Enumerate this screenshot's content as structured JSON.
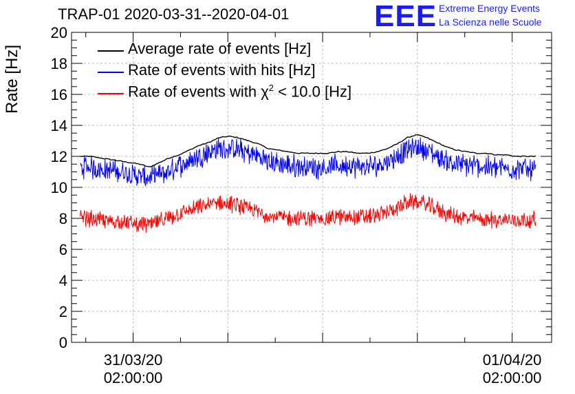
{
  "title": "TRAP-01 2020-03-31--2020-04-01",
  "logo": {
    "mark": "EEE",
    "line1": "Extreme Energy Events",
    "line2": "La Scienza nelle Scuole"
  },
  "legend": {
    "average": "Average rate of events [Hz]",
    "hits": "Rate of events with hits [Hz]",
    "chi2_prefix": "Rate of events with χ",
    "chi2_sup": "2",
    "chi2_suffix": " < 10.0 [Hz]"
  },
  "chart_data": {
    "type": "line",
    "title": "TRAP-01 2020-03-31--2020-04-01",
    "ylabel": "Rate [Hz]",
    "xlabel": "",
    "ylim": [
      0,
      20
    ],
    "yticks": [
      "0",
      "2",
      "4",
      "6",
      "8",
      "10",
      "12",
      "14",
      "16",
      "18",
      "20"
    ],
    "xlim_hours": [
      -1.9,
      28.5
    ],
    "xticks": [
      {
        "hour": 2,
        "date": "31/03/20",
        "time": "02:00:00"
      },
      {
        "hour": 26,
        "date": "01/04/20",
        "time": "02:00:00"
      }
    ],
    "grid": true,
    "series": [
      {
        "name": "Average rate of events [Hz]",
        "color": "#000000",
        "x": [
          0,
          1,
          2,
          3,
          4,
          5,
          6,
          7,
          8,
          9,
          10,
          11,
          12,
          13,
          14,
          15,
          16,
          17,
          18,
          19,
          20,
          21,
          22,
          23,
          24,
          25,
          26,
          27,
          28,
          29,
          30,
          31,
          32,
          33,
          34,
          35,
          36,
          37,
          38,
          39,
          40,
          41,
          42,
          43,
          44,
          45,
          46
        ],
        "values": [
          12.0,
          12.0,
          11.9,
          11.8,
          11.7,
          11.6,
          11.5,
          11.3,
          11.6,
          11.9,
          12.1,
          12.4,
          12.7,
          12.9,
          13.2,
          13.3,
          13.2,
          13.0,
          12.8,
          12.5,
          12.4,
          12.3,
          12.2,
          12.2,
          12.2,
          12.2,
          12.3,
          12.3,
          12.2,
          12.2,
          12.3,
          12.5,
          12.8,
          13.2,
          13.4,
          13.2,
          12.9,
          12.6,
          12.4,
          12.3,
          12.2,
          12.2,
          12.1,
          12.1,
          12.0,
          12.0,
          12.0
        ]
      },
      {
        "name": "Rate of events with hits [Hz]",
        "color": "#0000ff",
        "x": [
          0,
          1,
          2,
          3,
          4,
          5,
          6,
          7,
          8,
          9,
          10,
          11,
          12,
          13,
          14,
          15,
          16,
          17,
          18,
          19,
          20,
          21,
          22,
          23,
          24,
          25,
          26,
          27,
          28,
          29,
          30,
          31,
          32,
          33,
          34,
          35,
          36,
          37,
          38,
          39,
          40,
          41,
          42,
          43,
          44,
          45,
          46
        ],
        "values": [
          11.3,
          11.3,
          11.2,
          11.1,
          11.0,
          10.9,
          10.7,
          10.6,
          10.8,
          11.0,
          11.4,
          11.7,
          12.0,
          12.3,
          12.5,
          12.5,
          12.4,
          12.2,
          12.0,
          11.7,
          11.5,
          11.4,
          11.4,
          11.3,
          11.3,
          11.3,
          11.4,
          11.4,
          11.3,
          11.3,
          11.4,
          11.7,
          12.0,
          12.4,
          12.6,
          12.4,
          12.0,
          11.7,
          11.5,
          11.4,
          11.4,
          11.3,
          11.3,
          11.2,
          11.2,
          11.2,
          11.2
        ],
        "noise": 0.6
      },
      {
        "name": "Rate of events with χ2 < 10.0 [Hz]",
        "color": "#ff0000",
        "x": [
          0,
          1,
          2,
          3,
          4,
          5,
          6,
          7,
          8,
          9,
          10,
          11,
          12,
          13,
          14,
          15,
          16,
          17,
          18,
          19,
          20,
          21,
          22,
          23,
          24,
          25,
          26,
          27,
          28,
          29,
          30,
          31,
          32,
          33,
          34,
          35,
          36,
          37,
          38,
          39,
          40,
          41,
          42,
          43,
          44,
          45,
          46
        ],
        "values": [
          8.0,
          8.0,
          7.9,
          7.8,
          7.8,
          7.7,
          7.6,
          7.6,
          7.8,
          8.0,
          8.3,
          8.5,
          8.7,
          8.9,
          9.0,
          8.9,
          8.8,
          8.6,
          8.4,
          8.2,
          8.1,
          8.0,
          8.0,
          8.0,
          8.0,
          8.0,
          8.1,
          8.1,
          8.1,
          8.1,
          8.2,
          8.4,
          8.7,
          9.0,
          9.1,
          8.9,
          8.6,
          8.3,
          8.1,
          8.0,
          8.0,
          7.9,
          7.9,
          7.9,
          7.9,
          7.9,
          7.9
        ],
        "noise": 0.45
      }
    ]
  }
}
